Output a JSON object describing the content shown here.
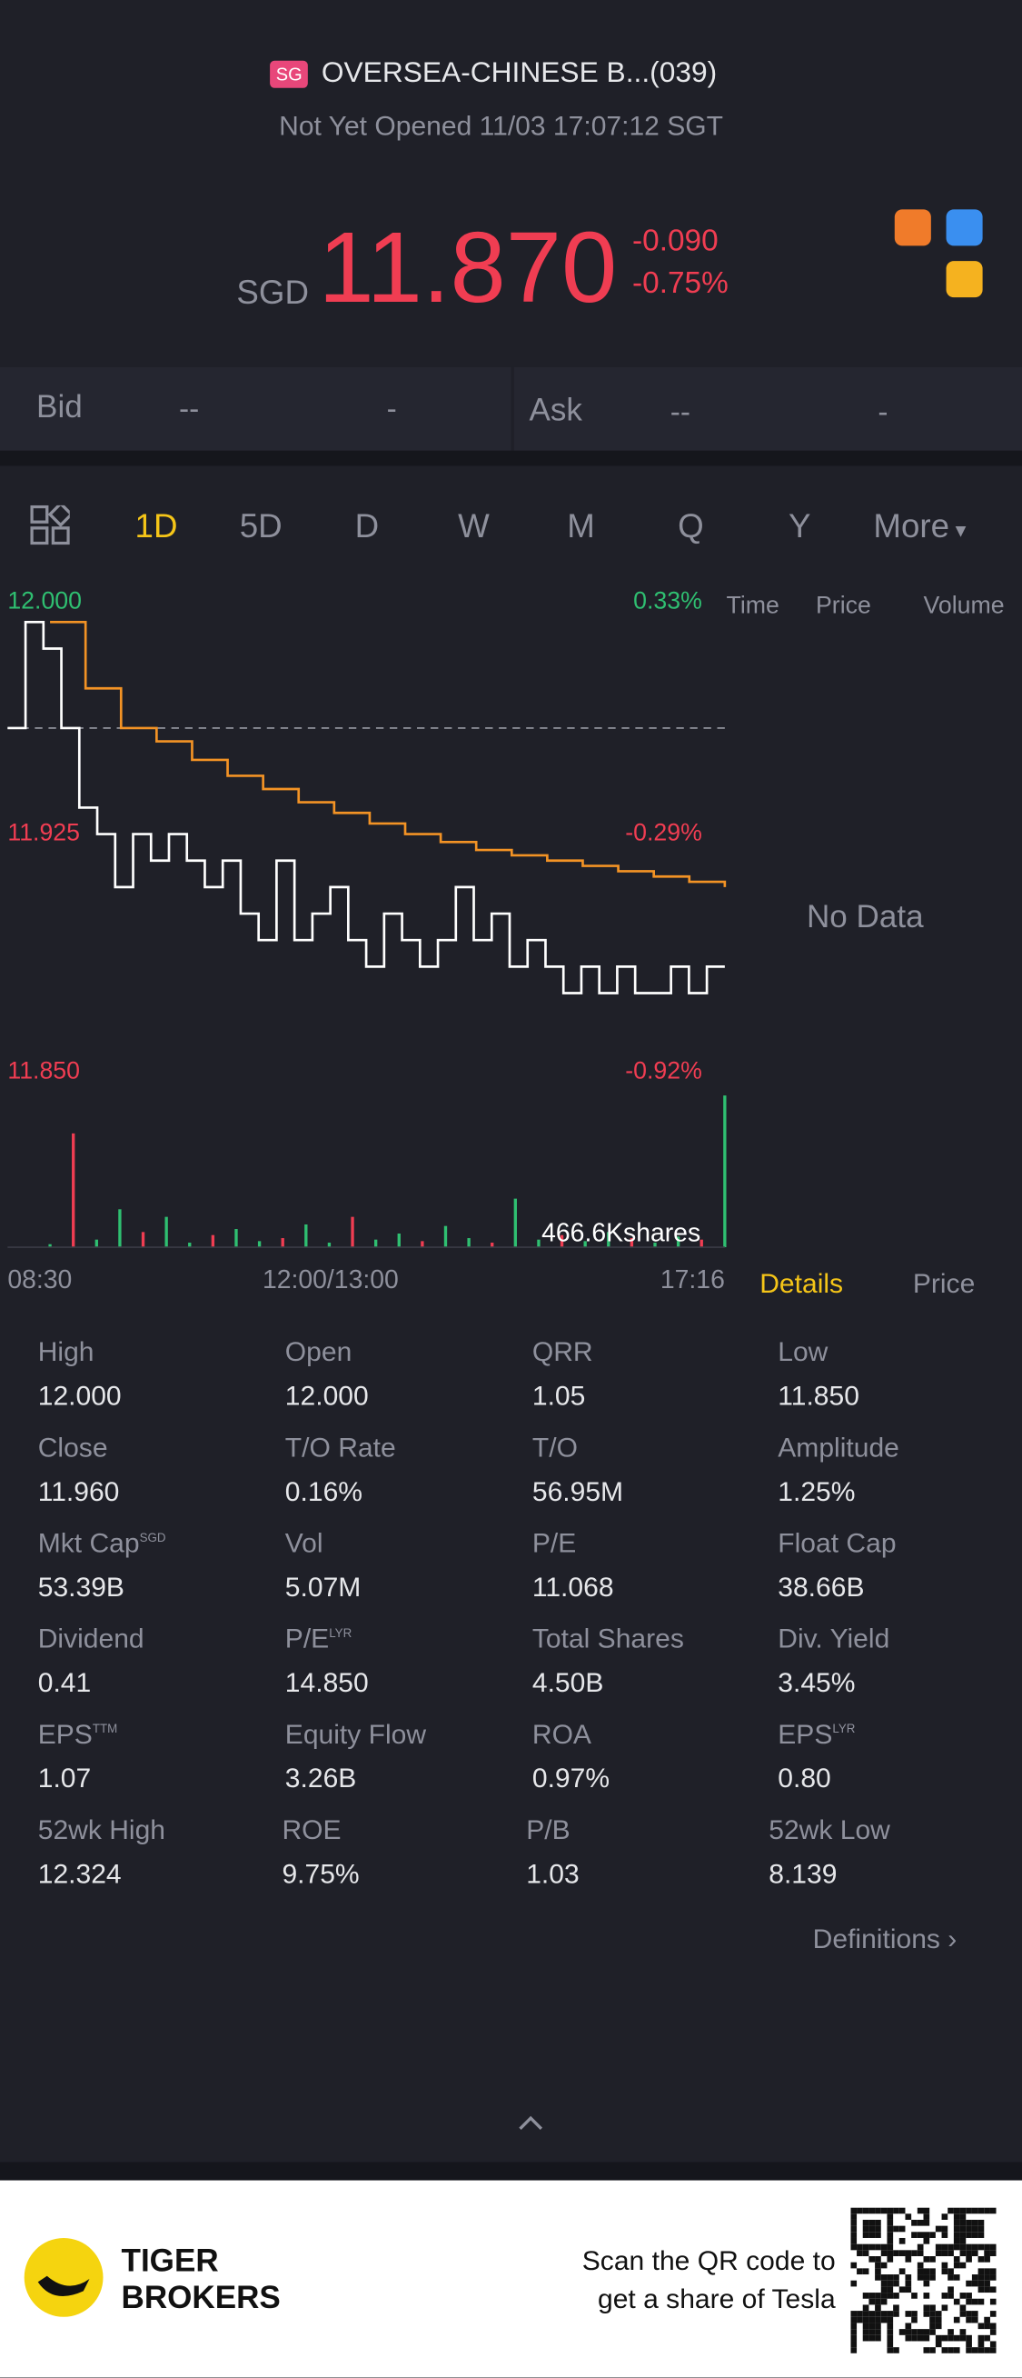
{
  "header": {
    "market_badge": "SG",
    "name": "OVERSEA-CHINESE B...(039)",
    "status": "Not Yet Opened 11/03 17:07:12 SGT"
  },
  "quote": {
    "currency": "SGD",
    "price": "11.870",
    "change": "-0.090",
    "change_pct": "-0.75%"
  },
  "order_book": {
    "bid_label": "Bid",
    "bid_price": "--",
    "bid_size": "-",
    "ask_label": "Ask",
    "ask_price": "--",
    "ask_size": "-"
  },
  "tabs": [
    "1D",
    "5D",
    "D",
    "W",
    "M",
    "Q",
    "Y",
    "More"
  ],
  "chart": {
    "price_labels": [
      "12.000",
      "11.925",
      "11.850"
    ],
    "pct_labels": [
      "0.33%",
      "-0.29%",
      "-0.92%"
    ],
    "volume_label": "466.6Kshares",
    "time_labels": [
      "08:30",
      "12:00/13:00",
      "17:16"
    ],
    "ylim": [
      11.85,
      12.0
    ],
    "prev_close": 11.96,
    "price": [
      11.96,
      12.0,
      11.99,
      11.96,
      11.93,
      11.92,
      11.9,
      11.92,
      11.91,
      11.92,
      11.91,
      11.9,
      11.91,
      11.89,
      11.88,
      11.91,
      11.88,
      11.89,
      11.9,
      11.88,
      11.87,
      11.89,
      11.88,
      11.87,
      11.88,
      11.9,
      11.88,
      11.89,
      11.87,
      11.88,
      11.87,
      11.86,
      11.87,
      11.86,
      11.87,
      11.86,
      11.86,
      11.87,
      11.86,
      11.87,
      11.87
    ],
    "avg": [
      12.0,
      11.975,
      11.96,
      11.955,
      11.948,
      11.942,
      11.937,
      11.932,
      11.928,
      11.924,
      11.92,
      11.917,
      11.914,
      11.912,
      11.91,
      11.908,
      11.906,
      11.904,
      11.902,
      11.9
    ],
    "volume_ylim": [
      0,
      100
    ],
    "volume": [
      2,
      75,
      5,
      25,
      10,
      20,
      3,
      8,
      12,
      4,
      6,
      15,
      3,
      20,
      5,
      9,
      4,
      14,
      6,
      3,
      32,
      5,
      8,
      4,
      10,
      6,
      3,
      7,
      5,
      100
    ]
  },
  "trades_panel": {
    "headers": [
      "Time",
      "Price",
      "Volume"
    ],
    "empty": "No Data",
    "tabs": [
      "Details",
      "Price"
    ]
  },
  "stats": [
    [
      {
        "label": "High",
        "value": "12.000"
      },
      {
        "label": "Open",
        "value": "12.000"
      },
      {
        "label": "QRR",
        "value": "1.05"
      },
      {
        "label": "Low",
        "value": "11.850"
      }
    ],
    [
      {
        "label": "Close",
        "value": "11.960"
      },
      {
        "label": "T/O Rate",
        "value": "0.16%"
      },
      {
        "label": "T/O",
        "value": "56.95M"
      },
      {
        "label": "Amplitude",
        "value": "1.25%"
      }
    ],
    [
      {
        "label": "Mkt Cap",
        "sup": "SGD",
        "value": "53.39B"
      },
      {
        "label": "Vol",
        "value": "5.07M"
      },
      {
        "label": "P/E",
        "value": "11.068"
      },
      {
        "label": "Float Cap",
        "value": "38.66B"
      }
    ],
    [
      {
        "label": "Dividend",
        "value": "0.41"
      },
      {
        "label": "P/E",
        "sup": "LYR",
        "value": "14.850"
      },
      {
        "label": "Total Shares",
        "value": "4.50B"
      },
      {
        "label": "Div. Yield",
        "value": "3.45%"
      }
    ],
    [
      {
        "label": "EPS",
        "sup": "TTM",
        "value": "1.07"
      },
      {
        "label": "Equity Flow",
        "value": "3.26B"
      },
      {
        "label": "ROA",
        "value": "0.97%"
      },
      {
        "label": "EPS",
        "sup": "LYR",
        "value": "0.80"
      }
    ],
    [
      {
        "label": "52wk High",
        "value": "12.324"
      },
      {
        "label": "ROE",
        "value": "9.75%"
      },
      {
        "label": "P/B",
        "value": "1.03"
      },
      {
        "label": "52wk Low",
        "value": "8.139"
      }
    ]
  ],
  "definitions": "Definitions",
  "footer": {
    "brand": [
      "TIGER",
      "BROKERS"
    ],
    "promo": [
      "Scan the QR code to",
      "get a share of Tesla"
    ]
  }
}
